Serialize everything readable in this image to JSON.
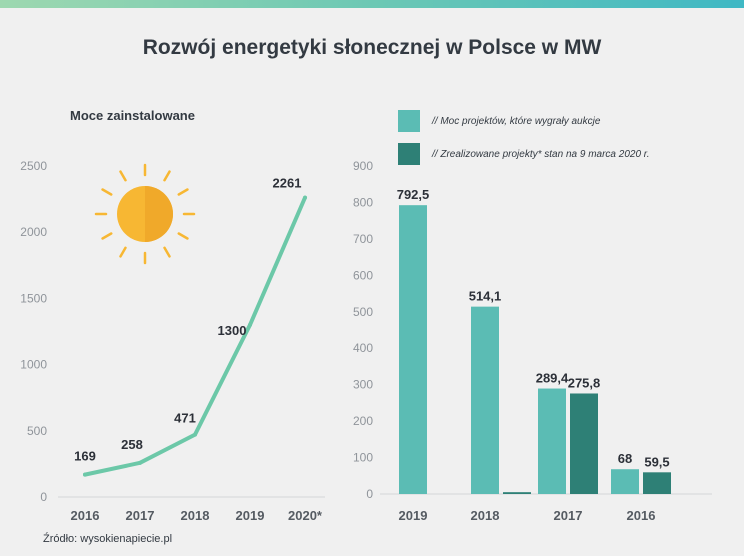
{
  "title": "Rozwój energetyki słonecznej w Polsce w MW",
  "source": "Źródło: wysokienapiecie.pl",
  "colors": {
    "line": "#6cc8a8",
    "bar_auction": "#5bbcb4",
    "bar_realized": "#2e8076",
    "sun": "#f7b733",
    "text": "#333a42",
    "tick": "#8f949a"
  },
  "chart_data": [
    {
      "type": "line",
      "title": "Moce zainstalowane",
      "categories": [
        "2016",
        "2017",
        "2018",
        "2019",
        "2020*"
      ],
      "points": [
        {
          "label": "169",
          "cat_index": 0,
          "value": 169
        },
        {
          "label": "258",
          "cat_index": 1,
          "value": 258
        },
        {
          "label": "471",
          "cat_index": 2,
          "value": 471
        },
        {
          "label": "1300",
          "cat_index": 3,
          "value": 1300
        },
        {
          "label": "2261",
          "cat_index": 4,
          "value": 2261
        }
      ],
      "ylim": [
        0,
        2500
      ],
      "yticks": [
        "0",
        "500",
        "1000",
        "1500",
        "2000",
        "2500"
      ],
      "xlabel": "",
      "ylabel": "",
      "grid": false
    },
    {
      "type": "bar",
      "categories": [
        "2019",
        "2018",
        "2017",
        "2016"
      ],
      "series": [
        {
          "name": "// Moc projektów, które wygrały aukcje",
          "values": [
            792.5,
            514.1,
            289.4,
            68
          ],
          "labels": [
            "792,5",
            "514,1",
            "289,4",
            "68"
          ]
        },
        {
          "name": "// Zrealizowane projekty* stan na 9 marca 2020 r.",
          "values": [
            null,
            5,
            275.8,
            59.5
          ],
          "labels": [
            "",
            "",
            "275,8",
            "59,5"
          ]
        }
      ],
      "ylim": [
        0,
        900
      ],
      "yticks": [
        "0",
        "100",
        "200",
        "300",
        "400",
        "500",
        "600",
        "700",
        "800",
        "900"
      ],
      "legend": "top-right",
      "grid": false
    }
  ]
}
